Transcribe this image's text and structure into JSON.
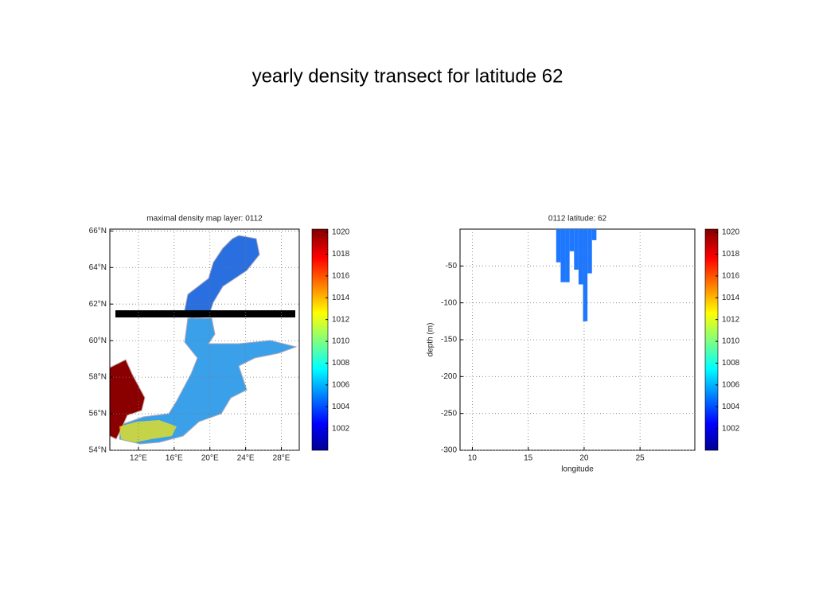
{
  "title": "yearly density transect for latitude 62",
  "chart_data": [
    {
      "type": "map",
      "title": "maximal density map layer: 0112",
      "xlim": [
        8.8,
        30
      ],
      "ylim": [
        54,
        66.1
      ],
      "xticks": [
        {
          "value": 12,
          "label": "12°E"
        },
        {
          "value": 16,
          "label": "16°E"
        },
        {
          "value": 20,
          "label": "20°E"
        },
        {
          "value": 24,
          "label": "24°E"
        },
        {
          "value": 28,
          "label": "28°E"
        }
      ],
      "yticks": [
        {
          "value": 54,
          "label": "54°N"
        },
        {
          "value": 56,
          "label": "56°N"
        },
        {
          "value": 58,
          "label": "58°N"
        },
        {
          "value": 60,
          "label": "60°N"
        },
        {
          "value": 62,
          "label": "62°N"
        },
        {
          "value": 64,
          "label": "64°N"
        },
        {
          "value": 66,
          "label": "66°N"
        }
      ],
      "clim": [
        1000,
        1020.3
      ],
      "cticks": [
        1002,
        1004,
        1006,
        1008,
        1010,
        1012,
        1014,
        1016,
        1018,
        1020
      ],
      "grid": true
    },
    {
      "type": "bar",
      "title": "0112 latitude: 62",
      "xlabel": "longitude",
      "ylabel": "depth (m)",
      "x": [
        17.7,
        18.1,
        18.5,
        18.9,
        19.3,
        19.7,
        20.1,
        20.5,
        20.9
      ],
      "values": [
        -45,
        -72,
        -72,
        -30,
        -55,
        -75,
        -125,
        -60,
        -15
      ],
      "color": "#1e78ff",
      "xlim": [
        8.9,
        29.9
      ],
      "ylim": [
        -300,
        0
      ],
      "xticks": [
        10,
        15,
        20,
        25
      ],
      "yticks": [
        -300,
        -250,
        -200,
        -150,
        -100,
        -50
      ],
      "clim": [
        1000,
        1020.3
      ],
      "cticks": [
        1002,
        1004,
        1006,
        1008,
        1010,
        1012,
        1014,
        1016,
        1018,
        1020
      ],
      "grid": true
    }
  ]
}
